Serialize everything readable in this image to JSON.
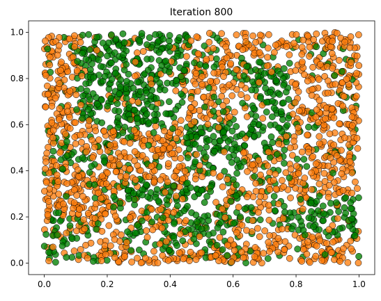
{
  "chart_data": {
    "type": "scatter",
    "title": "Iteration 800",
    "xlabel": "",
    "ylabel": "",
    "xlim": [
      -0.05,
      1.05
    ],
    "ylim": [
      -0.05,
      1.05
    ],
    "x_ticks": [
      "0.0",
      "0.2",
      "0.4",
      "0.6",
      "0.8",
      "1.0"
    ],
    "y_ticks": [
      "0.0",
      "0.2",
      "0.4",
      "0.6",
      "0.8",
      "1.0"
    ],
    "grid": false,
    "legend": "none",
    "series": [
      {
        "color": "#ff7f0e",
        "regions": [
          {
            "x": [
              0.0,
              0.45
            ],
            "y": [
              0.0,
              0.25
            ]
          },
          {
            "x": [
              0.0,
              0.2
            ],
            "y": [
              0.25,
              0.62
            ]
          },
          {
            "x": [
              0.2,
              0.45
            ],
            "y": [
              0.32,
              0.58
            ]
          },
          {
            "x": [
              0.45,
              1.0
            ],
            "y": [
              0.0,
              0.12
            ]
          },
          {
            "x": [
              0.62,
              1.0
            ],
            "y": [
              0.28,
              0.5
            ]
          },
          {
            "x": [
              0.78,
              1.0
            ],
            "y": [
              0.5,
              1.0
            ]
          },
          {
            "x": [
              0.42,
              0.65
            ],
            "y": [
              0.6,
              0.85
            ]
          },
          {
            "x": [
              0.0,
              0.12
            ],
            "y": [
              0.62,
              1.0
            ]
          },
          {
            "x": [
              0.55,
              0.8
            ],
            "y": [
              0.88,
              1.0
            ]
          }
        ]
      },
      {
        "color": "#008000",
        "regions": [
          {
            "x": [
              0.1,
              0.45
            ],
            "y": [
              0.62,
              1.0
            ]
          },
          {
            "x": [
              0.25,
              0.55
            ],
            "y": [
              0.05,
              0.35
            ]
          },
          {
            "x": [
              0.45,
              0.78
            ],
            "y": [
              0.4,
              0.62
            ]
          },
          {
            "x": [
              0.6,
              0.78
            ],
            "y": [
              0.62,
              0.9
            ]
          },
          {
            "x": [
              0.0,
              0.18
            ],
            "y": [
              0.0,
              0.2
            ]
          },
          {
            "x": [
              0.0,
              0.2
            ],
            "y": [
              0.38,
              0.52
            ]
          },
          {
            "x": [
              0.78,
              1.0
            ],
            "y": [
              0.12,
              0.3
            ]
          },
          {
            "x": [
              0.2,
              0.4
            ],
            "y": [
              0.58,
              0.7
            ]
          }
        ]
      }
    ]
  }
}
